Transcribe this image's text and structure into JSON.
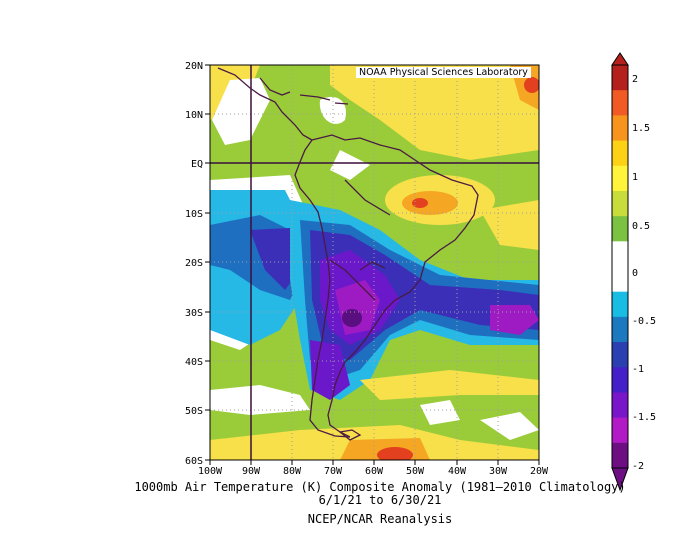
{
  "credit": "NOAA Physical Sciences Laboratory",
  "caption": {
    "line1": "1000mb Air Temperature (K) Composite Anomaly (1981–2010 Climatology)",
    "line2": "6/1/21  to 6/30/21",
    "line3": "NCEP/NCAR Reanalysis"
  },
  "axes": {
    "lat_labels": [
      "20N",
      "10N",
      "EQ",
      "10S",
      "20S",
      "30S",
      "40S",
      "50S",
      "60S"
    ],
    "lon_labels": [
      "100W",
      "90W",
      "80W",
      "70W",
      "60W",
      "50W",
      "40W",
      "30W",
      "20W"
    ]
  },
  "colorbar": {
    "labels": [
      "2",
      "1.5",
      "1",
      "0.5",
      "0",
      "-0.5",
      "-1",
      "-1.5",
      "-2"
    ],
    "colors": [
      "#b4211d",
      "#f15a24",
      "#f7941d",
      "#fcd116",
      "#fff33b",
      "#c8dc3c",
      "#7cc242",
      "#ffffff",
      "#ffffff",
      "#19bde3",
      "#1c79c0",
      "#2a3fb0",
      "#4420c8",
      "#7a16c9",
      "#b11ac4",
      "#6d0f83"
    ]
  },
  "map_colors": {
    "background": "#9acc3a",
    "yellow": "#f7e04a",
    "orange": "#f5a623",
    "red": "#e2401e",
    "white": "#ffffff",
    "cyan": "#26b9e6",
    "blue": "#1f6fc0",
    "indigo": "#3b2fb8",
    "violet": "#6a18c9",
    "purple": "#9e1bc4",
    "darkpurple": "#5a0f80",
    "coast": "#4a1a44"
  }
}
